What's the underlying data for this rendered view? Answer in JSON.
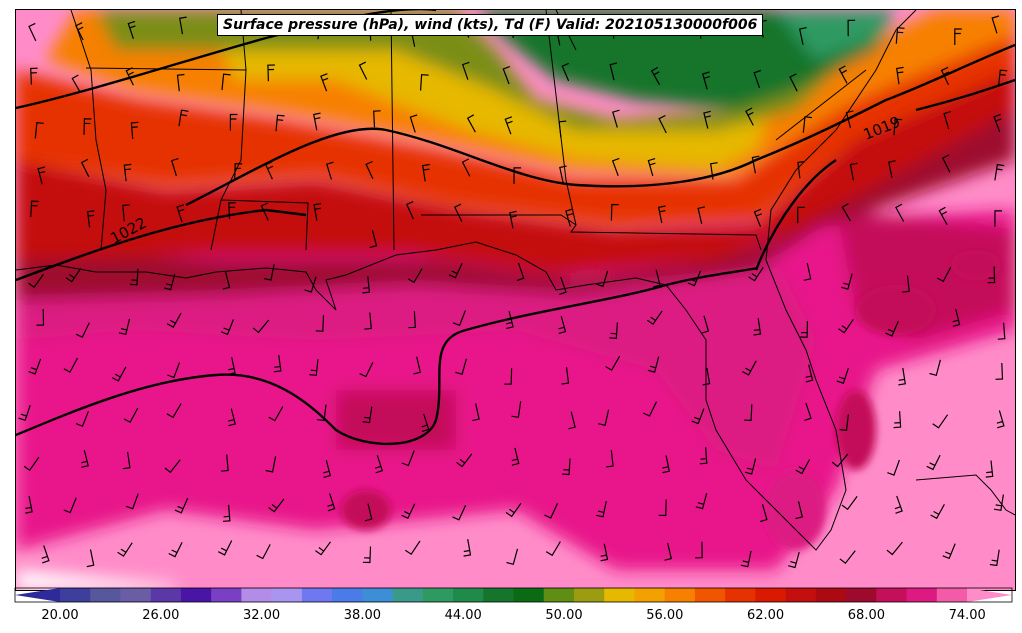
{
  "title": "Surface pressure (hPa), wind (kts), Td (F) Valid: 202105130000f006",
  "isobar_labels": [
    "1022",
    "1019"
  ],
  "colorbar": {
    "ticks": [
      "20.00",
      "26.00",
      "32.00",
      "38.00",
      "44.00",
      "50.00",
      "56.00",
      "62.00",
      "68.00",
      "74.00"
    ],
    "colors": [
      "#2d2a9a",
      "#3e3f9c",
      "#57579e",
      "#6b5da5",
      "#5c37a8",
      "#4a14a6",
      "#7a3fc4",
      "#b38ce8",
      "#a995f0",
      "#6f78f0",
      "#4a7be8",
      "#3d8ed6",
      "#3a9a8a",
      "#2e9a62",
      "#1f8a4a",
      "#16752c",
      "#0b6b14",
      "#5f8e12",
      "#9c9c10",
      "#e6b800",
      "#f2a100",
      "#f78000",
      "#f25500",
      "#e63200",
      "#d91a00",
      "#c40f0f",
      "#ab0a12",
      "#9e0a2e",
      "#c4105a",
      "#dc1a82",
      "#f35aa8",
      "#ff8cc8"
    ]
  }
}
